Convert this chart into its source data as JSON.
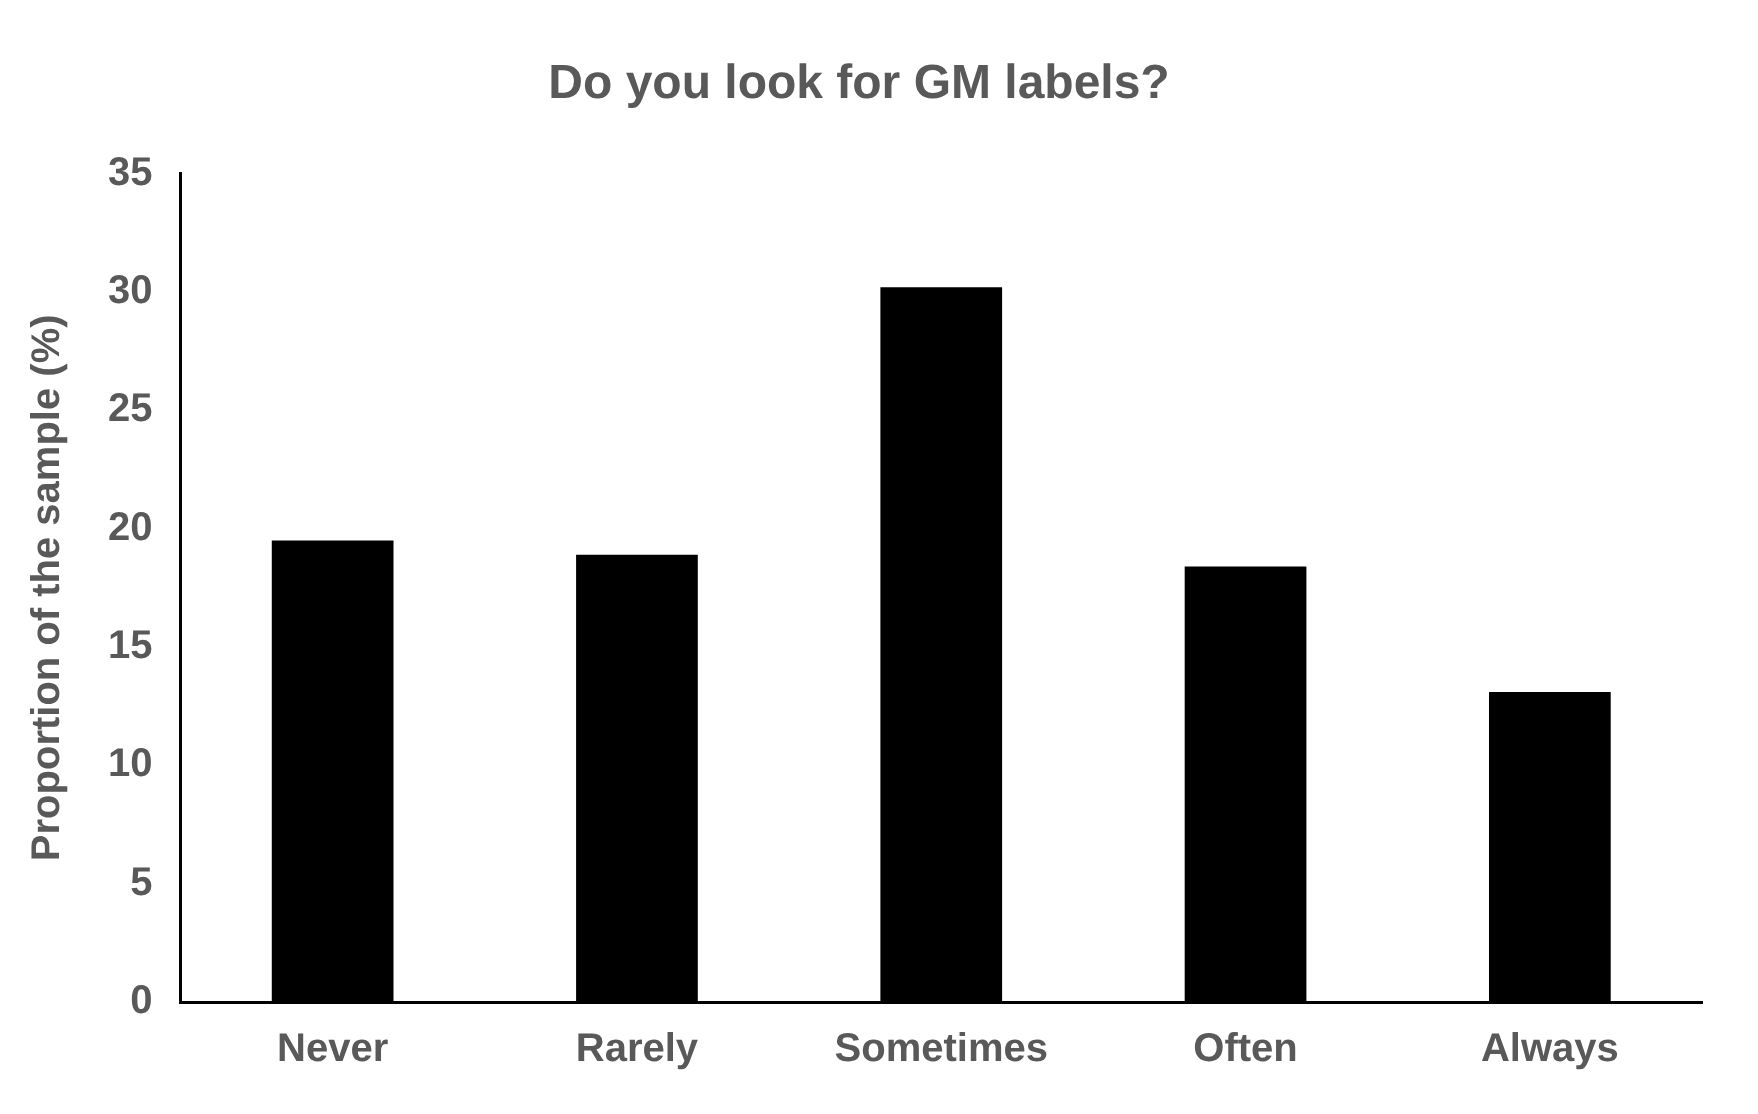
{
  "chart_data": {
    "type": "bar",
    "title": "Do you look for GM labels?",
    "ylabel": "Proportion of the sample (%)",
    "categories": [
      "Never",
      "Rarely",
      "Sometimes",
      "Often",
      "Always"
    ],
    "values": [
      19.5,
      18.9,
      30.2,
      18.4,
      13.1
    ],
    "color": "#000000",
    "ylim": [
      0,
      35
    ],
    "yticks": [
      0,
      5,
      10,
      15,
      20,
      25,
      30,
      35
    ],
    "grid": false,
    "legend": false
  }
}
